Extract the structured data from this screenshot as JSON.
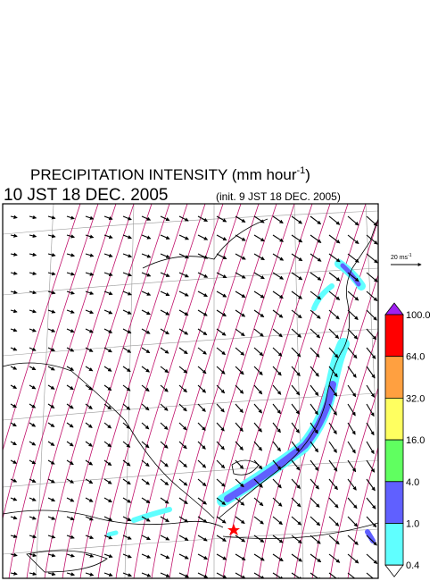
{
  "header": {
    "title": "PRECIPITATION INTENSITY (mm hour",
    "title_exponent": "-1",
    "title_end": ")",
    "valid_time": "10 JST 18 DEC. 2005",
    "init_time": "(init. 9 JST 18 DEC. 2005)"
  },
  "wind_scale": {
    "label": "20 ms",
    "exponent": "-1"
  },
  "legend": {
    "levels": [
      "100.0",
      "64.0",
      "32.0",
      "16.0",
      "4.0",
      "1.0",
      "0.4"
    ],
    "colors": [
      "#a020f0",
      "#ff0000",
      "#ffa040",
      "#ffff60",
      "#60ff60",
      "#6060ff",
      "#60ffff",
      "#ffffff"
    ]
  }
}
